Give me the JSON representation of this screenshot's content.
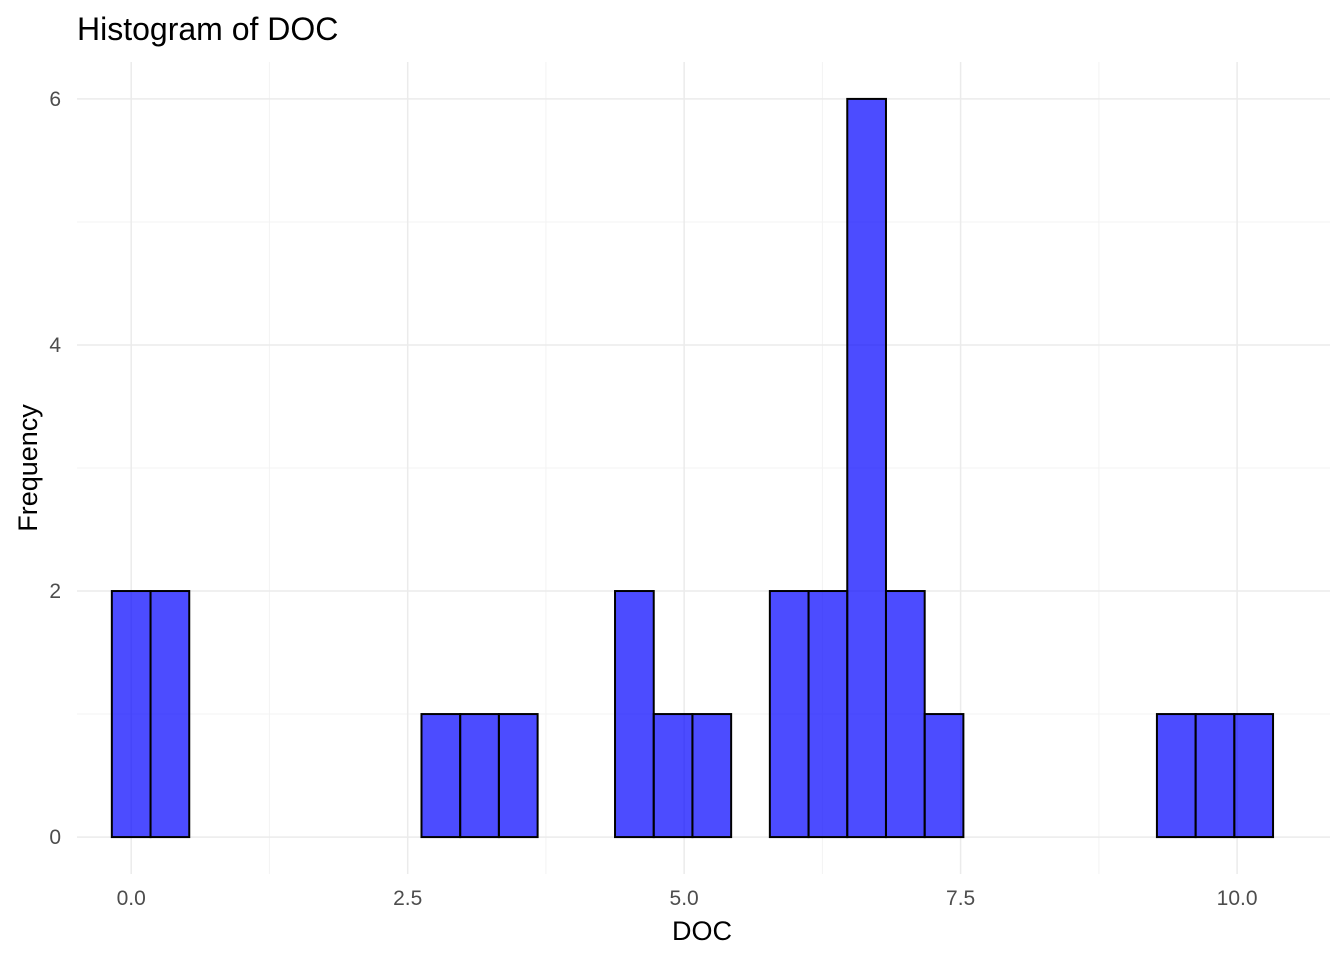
{
  "chart_data": {
    "type": "bar",
    "title": "Histogram of DOC",
    "xlabel": "DOC",
    "ylabel": "Frequency",
    "xlim": [
      -0.49,
      10.84
    ],
    "ylim": [
      -0.3,
      6.3
    ],
    "bin_width": 0.35,
    "x_ticks": [
      0.0,
      2.5,
      5.0,
      7.5,
      10.0
    ],
    "x_tick_labels": [
      "0.0",
      "2.5",
      "5.0",
      "7.5",
      "10.0"
    ],
    "y_ticks": [
      0,
      2,
      4,
      6
    ],
    "y_tick_labels": [
      "0",
      "2",
      "4",
      "6"
    ],
    "grid": true,
    "legend": "none",
    "bar_fill": "#0000ff",
    "bar_opacity": 0.7,
    "bar_outline": "#000000",
    "bins": [
      {
        "x": 0.0,
        "count": 2
      },
      {
        "x": 0.35,
        "count": 2
      },
      {
        "x": 0.7,
        "count": 0
      },
      {
        "x": 1.05,
        "count": 0
      },
      {
        "x": 1.4,
        "count": 0
      },
      {
        "x": 1.75,
        "count": 0
      },
      {
        "x": 2.1,
        "count": 0
      },
      {
        "x": 2.45,
        "count": 0
      },
      {
        "x": 2.8,
        "count": 1
      },
      {
        "x": 3.15,
        "count": 1
      },
      {
        "x": 3.5,
        "count": 1
      },
      {
        "x": 3.85,
        "count": 0
      },
      {
        "x": 4.2,
        "count": 0
      },
      {
        "x": 4.55,
        "count": 2
      },
      {
        "x": 4.9,
        "count": 1
      },
      {
        "x": 5.25,
        "count": 1
      },
      {
        "x": 5.6,
        "count": 0
      },
      {
        "x": 5.95,
        "count": 2
      },
      {
        "x": 6.3,
        "count": 2
      },
      {
        "x": 6.65,
        "count": 6
      },
      {
        "x": 7.0,
        "count": 2
      },
      {
        "x": 7.35,
        "count": 1
      },
      {
        "x": 7.7,
        "count": 0
      },
      {
        "x": 8.05,
        "count": 0
      },
      {
        "x": 8.4,
        "count": 0
      },
      {
        "x": 8.75,
        "count": 0
      },
      {
        "x": 9.1,
        "count": 0
      },
      {
        "x": 9.45,
        "count": 1
      },
      {
        "x": 9.8,
        "count": 1
      },
      {
        "x": 10.15,
        "count": 1
      }
    ]
  }
}
